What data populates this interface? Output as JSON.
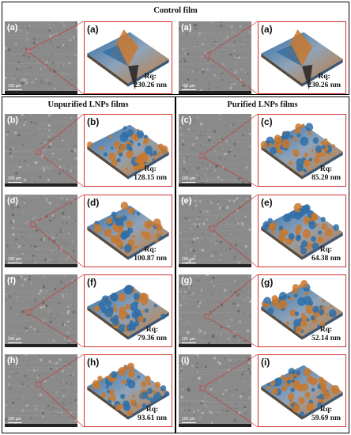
{
  "headers": {
    "control": "Control film",
    "unpurified": "Unpurified LNPs films",
    "purified": "Purified LNPs films"
  },
  "scale_bar_label": "100 µm",
  "rq_label": "Rq:",
  "panels": [
    {
      "id": "a-left",
      "letter": "(a)",
      "rq": "230.26 nm",
      "afm": "control"
    },
    {
      "id": "a-right",
      "letter": "(a)",
      "rq": "230.26 nm",
      "afm": "control"
    },
    {
      "id": "b",
      "letter": "(b)",
      "rq": "128.15 nm",
      "afm": "mixed"
    },
    {
      "id": "c",
      "letter": "(c)",
      "rq": "85.20 nm",
      "afm": "mixed"
    },
    {
      "id": "d",
      "letter": "(d)",
      "rq": "100.87 nm",
      "afm": "mixed"
    },
    {
      "id": "e",
      "letter": "(e)",
      "rq": "64.38 nm",
      "afm": "mixed"
    },
    {
      "id": "f",
      "letter": "(f)",
      "rq": "79.36 nm",
      "afm": "mixed"
    },
    {
      "id": "g",
      "letter": "(g)",
      "rq": "52.14 nm",
      "afm": "mixed"
    },
    {
      "id": "h",
      "letter": "(h)",
      "rq": "93.61 nm",
      "afm": "mixed"
    },
    {
      "id": "i",
      "letter": "(i)",
      "rq": "59.69 nm",
      "afm": "mixed"
    }
  ],
  "colors": {
    "afm_orange": "#c8782e",
    "afm_blue": "#2f6ea8",
    "sem_gray": "#8a8a8a",
    "callout_red": "#d0312d"
  }
}
